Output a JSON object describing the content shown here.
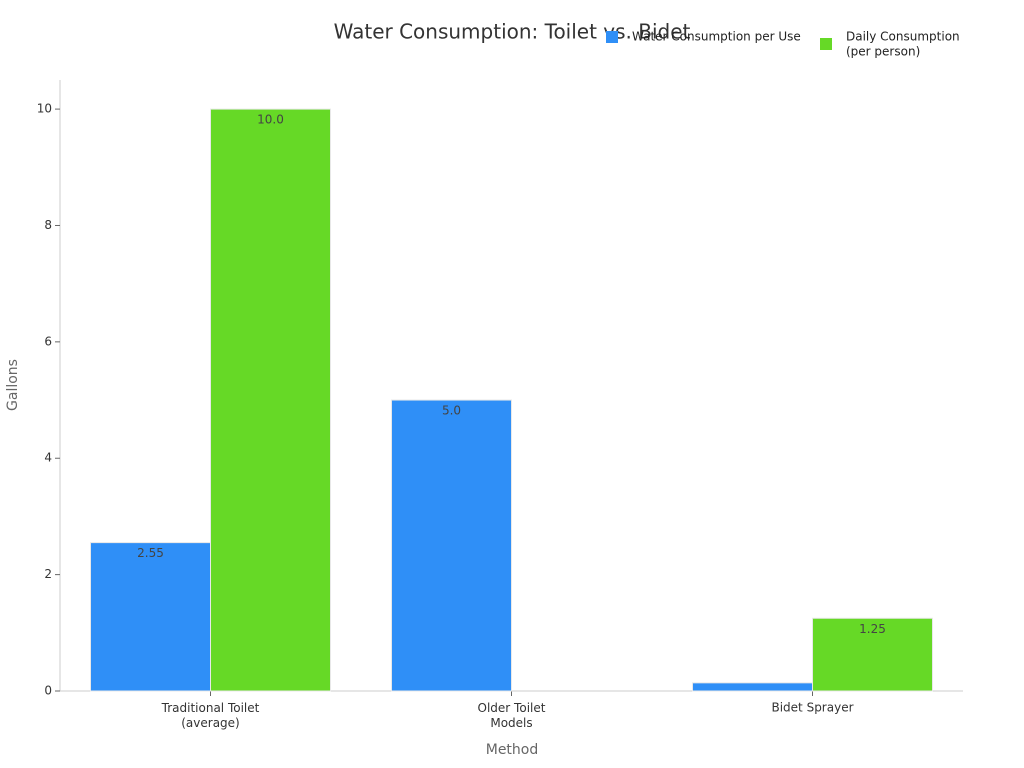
{
  "chart_data": {
    "type": "bar",
    "title": "Water Consumption: Toilet vs. Bidet",
    "x_label": "Method",
    "y_label": "Gallons",
    "categories": [
      "Traditional Toilet\n(average)",
      "Older Toilet\nModels",
      "Bidet Sprayer"
    ],
    "series": [
      {
        "name": "Water Consumption per Use",
        "color": "#2f8ff7",
        "values": [
          2.55,
          5.0,
          0.14
        ],
        "value_labels": [
          "2.55",
          "5.0",
          null
        ]
      },
      {
        "name": "Daily Consumption\n(per person)",
        "color": "#66d926",
        "values": [
          10.0,
          null,
          1.25
        ],
        "value_labels": [
          "10.0",
          null,
          "1.25"
        ]
      }
    ],
    "ylim": [
      0,
      10.5
    ],
    "yticks": [
      0,
      2,
      4,
      6,
      8,
      10
    ]
  }
}
